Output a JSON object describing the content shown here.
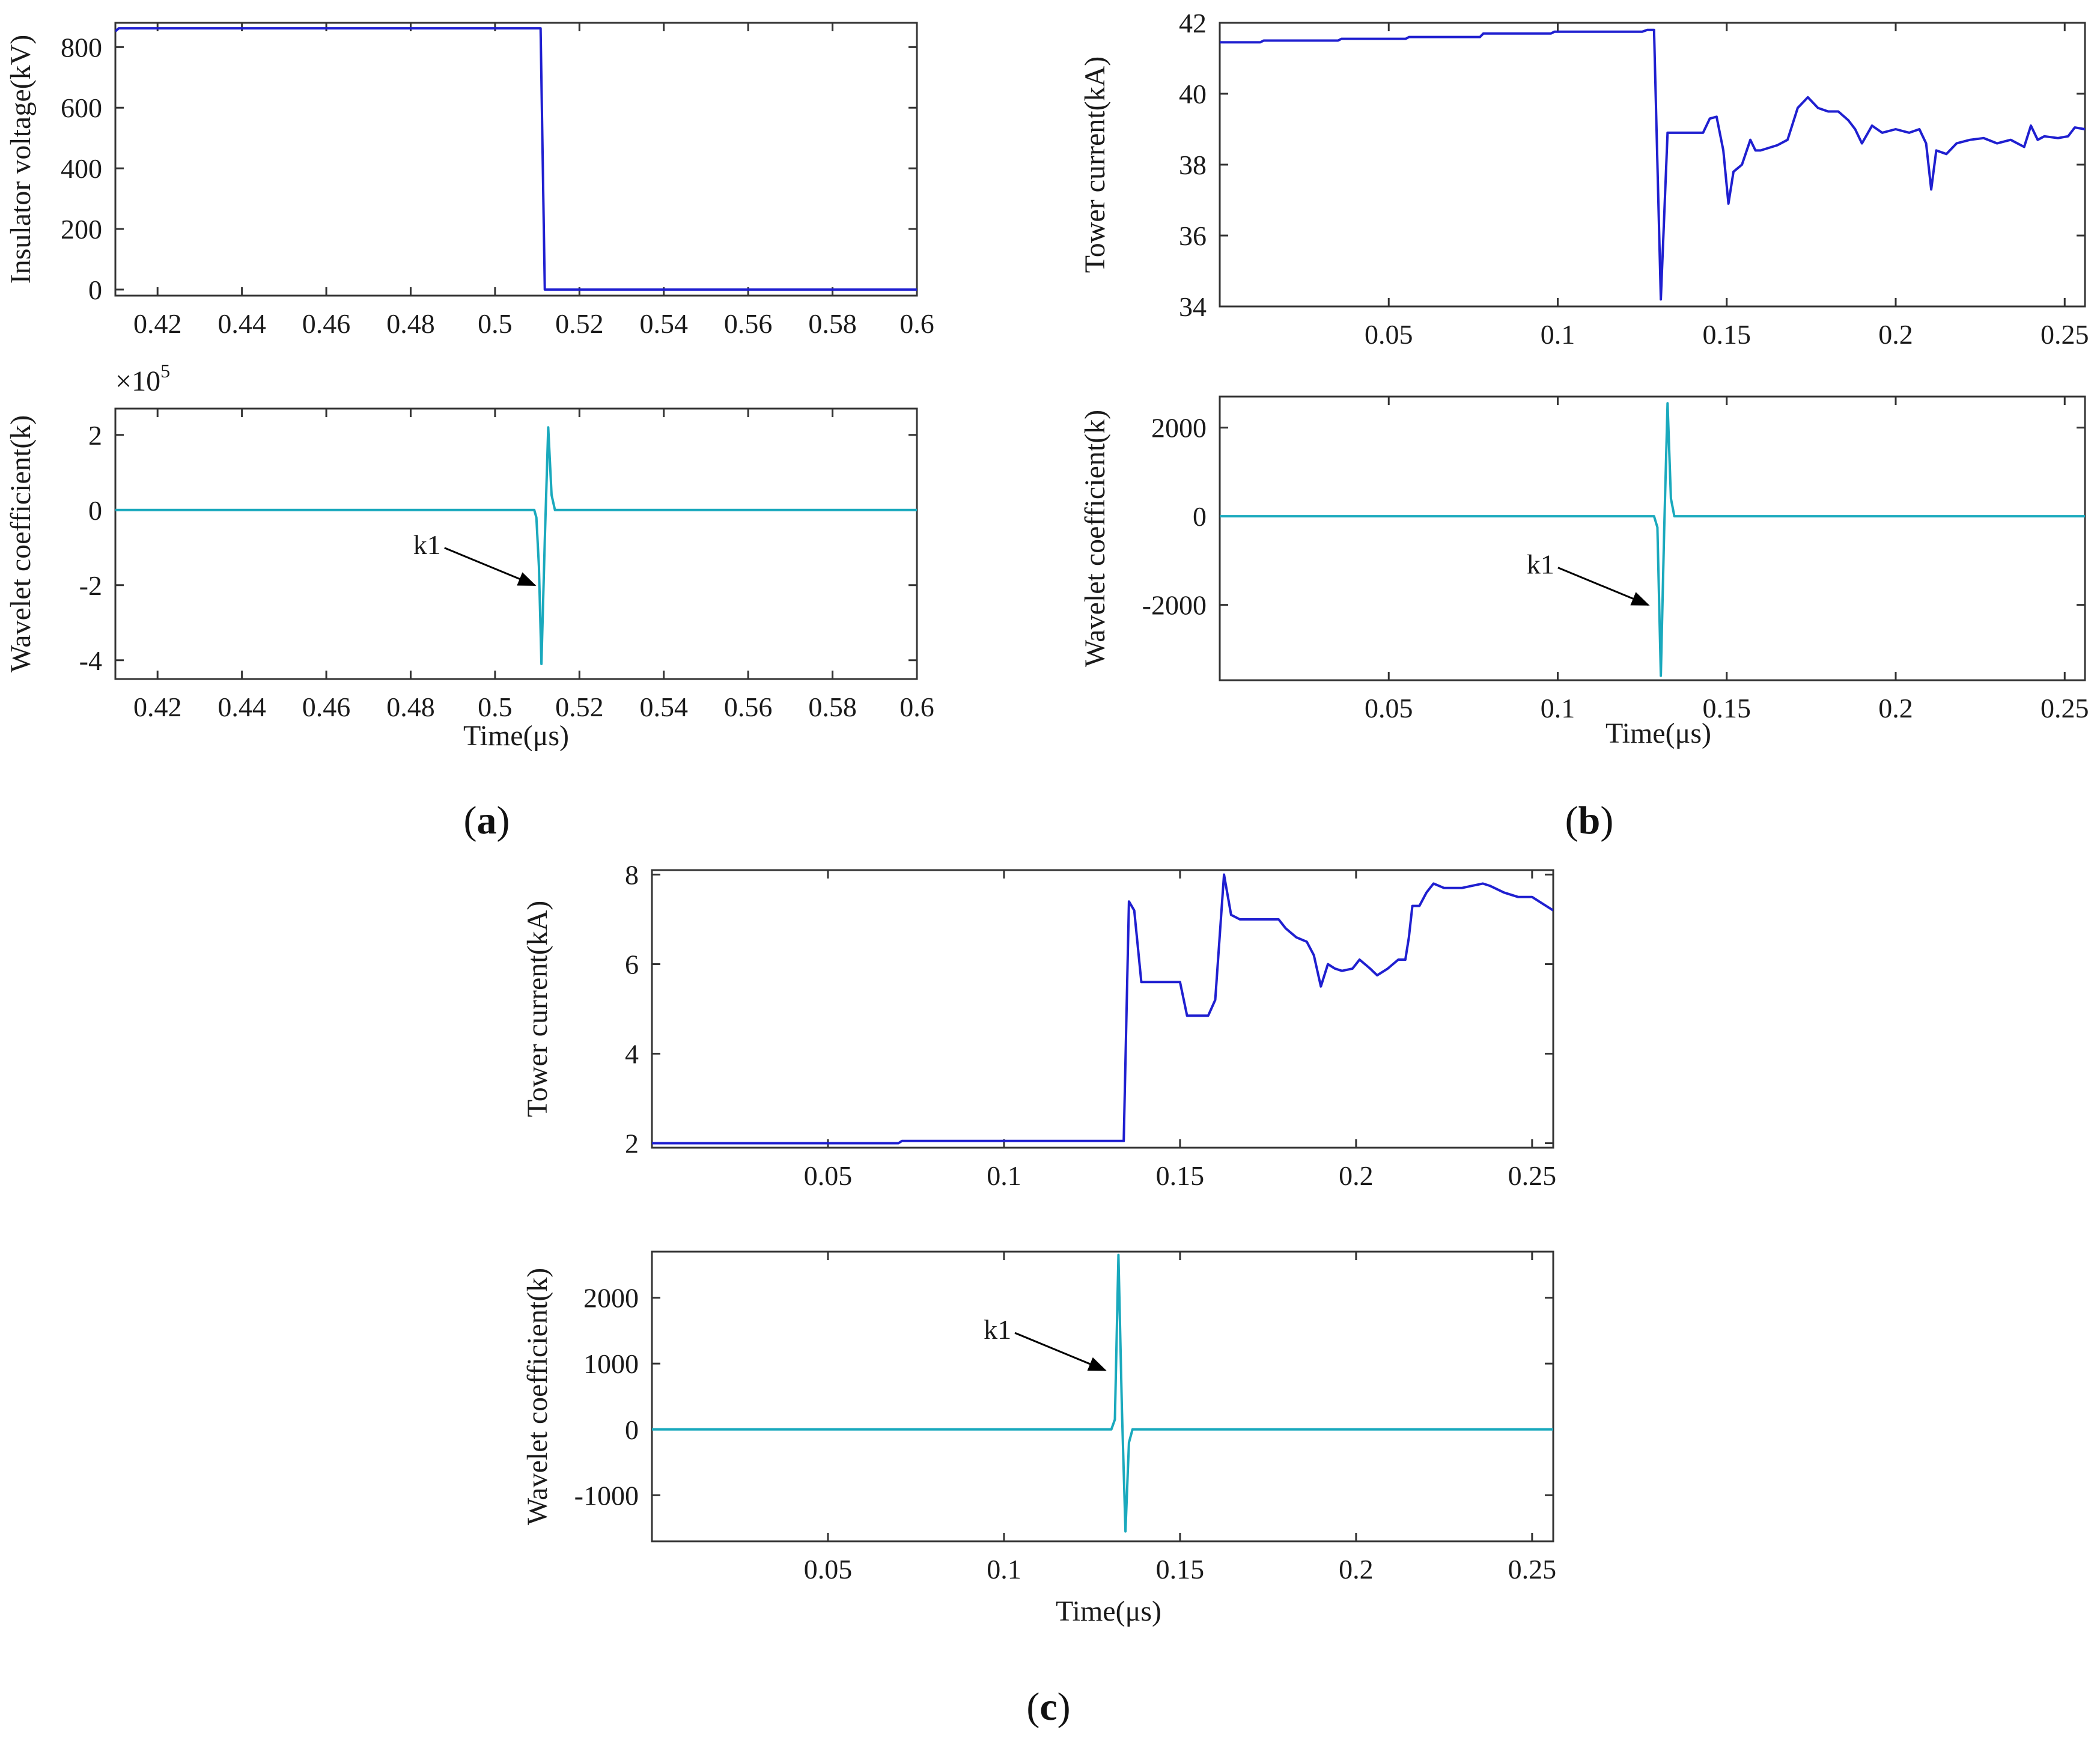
{
  "figure": {
    "colors": {
      "voltage_line": "#1f1fd0",
      "current_line": "#1f1fd0",
      "wavelet_line": "#1aa9bd",
      "axis": "#333333"
    },
    "panel_labels": [
      {
        "id": "a",
        "open": "(",
        "letter": "a",
        "close": ")"
      },
      {
        "id": "b",
        "open": "(",
        "letter": "b",
        "close": ")"
      },
      {
        "id": "c",
        "open": "(",
        "letter": "c",
        "close": ")"
      }
    ]
  },
  "chart_data": [
    {
      "id": "a_top",
      "type": "line",
      "panel": "a",
      "ylabel": "Insulator voltage(kV)",
      "xlabel": "",
      "xlim": [
        0.41,
        0.6
      ],
      "ylim": [
        -20,
        880
      ],
      "xticks": [
        0.42,
        0.44,
        0.46,
        0.48,
        0.5,
        0.52,
        0.54,
        0.56,
        0.58,
        0.6
      ],
      "xtick_labels": [
        "0.42",
        "0.44",
        "0.46",
        "0.48",
        "0.5",
        "0.52",
        "0.54",
        "0.56",
        "0.58",
        "0.6"
      ],
      "yticks": [
        0,
        200,
        400,
        600,
        800
      ],
      "ytick_labels": [
        "0",
        "200",
        "400",
        "600",
        "800"
      ],
      "series": [
        {
          "name": "Insulator voltage",
          "color": "#1f1fd0",
          "x": [
            0.41,
            0.4108,
            0.5108,
            0.5118,
            0.6
          ],
          "y": [
            852,
            862,
            862,
            0,
            0
          ]
        }
      ]
    },
    {
      "id": "a_bottom",
      "type": "line",
      "panel": "a",
      "ylabel": "Wavelet coefficient(k)",
      "xlabel": "Time(μs)",
      "scale_prefix": "×10",
      "scale_exponent": "5",
      "xlim": [
        0.41,
        0.6
      ],
      "ylim": [
        -4.5,
        2.7
      ],
      "xticks": [
        0.42,
        0.44,
        0.46,
        0.48,
        0.5,
        0.52,
        0.54,
        0.56,
        0.58,
        0.6
      ],
      "xtick_labels": [
        "0.42",
        "0.44",
        "0.46",
        "0.48",
        "0.5",
        "0.52",
        "0.54",
        "0.56",
        "0.58",
        "0.6"
      ],
      "yticks": [
        -4,
        -2,
        0,
        2
      ],
      "ytick_labels": [
        "-4",
        "-2",
        "0",
        "2"
      ],
      "series": [
        {
          "name": "Wavelet coefficient",
          "color": "#1aa9bd",
          "x": [
            0.41,
            0.5093,
            0.5098,
            0.5104,
            0.511,
            0.5118,
            0.5126,
            0.5134,
            0.5142,
            0.6
          ],
          "y": [
            0,
            0,
            -0.2,
            -1.5,
            -4.1,
            -0.8,
            2.2,
            0.4,
            0,
            0
          ]
        }
      ],
      "annotations": [
        {
          "text": "k1",
          "target_x": 0.5108,
          "target_y": -2.0
        }
      ]
    },
    {
      "id": "b_top",
      "type": "line",
      "panel": "b",
      "ylabel": "Tower current(kA)",
      "xlabel": "",
      "xlim": [
        0,
        0.256
      ],
      "ylim": [
        34,
        42
      ],
      "xticks": [
        0.05,
        0.1,
        0.15,
        0.2,
        0.25
      ],
      "xtick_labels": [
        "0.05",
        "0.1",
        "0.15",
        "0.2",
        "0.25"
      ],
      "yticks": [
        34,
        36,
        38,
        40,
        42
      ],
      "ytick_labels": [
        "34",
        "36",
        "38",
        "40",
        "42"
      ],
      "series": [
        {
          "name": "Tower current",
          "color": "#1f1fd0",
          "x": [
            0,
            0.012,
            0.013,
            0.035,
            0.036,
            0.055,
            0.056,
            0.077,
            0.078,
            0.098,
            0.099,
            0.125,
            0.1265,
            0.1285,
            0.1305,
            0.1325,
            0.134,
            0.143,
            0.145,
            0.147,
            0.149,
            0.1505,
            0.152,
            0.1545,
            0.157,
            0.1585,
            0.16,
            0.165,
            0.168,
            0.171,
            0.174,
            0.177,
            0.18,
            0.183,
            0.186,
            0.188,
            0.19,
            0.193,
            0.196,
            0.2,
            0.204,
            0.207,
            0.209,
            0.2105,
            0.212,
            0.215,
            0.218,
            0.222,
            0.226,
            0.23,
            0.234,
            0.238,
            0.24,
            0.242,
            0.244,
            0.248,
            0.251,
            0.253,
            0.256
          ],
          "y": [
            41.45,
            41.45,
            41.5,
            41.5,
            41.55,
            41.55,
            41.6,
            41.6,
            41.7,
            41.7,
            41.75,
            41.75,
            41.8,
            41.8,
            34.2,
            38.9,
            38.9,
            38.9,
            39.3,
            39.35,
            38.4,
            36.9,
            37.8,
            38.0,
            38.7,
            38.4,
            38.4,
            38.55,
            38.7,
            39.6,
            39.9,
            39.6,
            39.5,
            39.5,
            39.25,
            39.0,
            38.6,
            39.1,
            38.9,
            39.0,
            38.9,
            39.0,
            38.6,
            37.3,
            38.4,
            38.3,
            38.6,
            38.7,
            38.75,
            38.6,
            38.7,
            38.5,
            39.1,
            38.7,
            38.8,
            38.75,
            38.8,
            39.05,
            39.0
          ]
        }
      ]
    },
    {
      "id": "b_bottom",
      "type": "line",
      "panel": "b",
      "ylabel": "Wavelet coefficient(k)",
      "xlabel": "Time(μs)",
      "xlim": [
        0,
        0.256
      ],
      "ylim": [
        -3700,
        2700
      ],
      "xticks": [
        0.05,
        0.1,
        0.15,
        0.2,
        0.25
      ],
      "xtick_labels": [
        "0.05",
        "0.1",
        "0.15",
        "0.2",
        "0.25"
      ],
      "yticks": [
        -2000,
        0,
        2000
      ],
      "ytick_labels": [
        "-2000",
        "0",
        "2000"
      ],
      "series": [
        {
          "name": "Wavelet coefficient",
          "color": "#1aa9bd",
          "x": [
            0,
            0.1285,
            0.1295,
            0.1305,
            0.1315,
            0.1325,
            0.1335,
            0.1345,
            0.256
          ],
          "y": [
            0,
            0,
            -250,
            -3600,
            -300,
            2550,
            400,
            0,
            0
          ]
        }
      ],
      "annotations": [
        {
          "text": "k1",
          "target_x": 0.1285,
          "target_y": -2000
        }
      ]
    },
    {
      "id": "c_top",
      "type": "line",
      "panel": "c",
      "ylabel": "Tower current(kA)",
      "xlabel": "",
      "xlim": [
        0,
        0.256
      ],
      "ylim": [
        1.9,
        8.1
      ],
      "xticks": [
        0.05,
        0.1,
        0.15,
        0.2,
        0.25
      ],
      "xtick_labels": [
        "0.05",
        "0.1",
        "0.15",
        "0.2",
        "0.25"
      ],
      "yticks": [
        2,
        4,
        6,
        8
      ],
      "ytick_labels": [
        "2",
        "4",
        "6",
        "8"
      ],
      "series": [
        {
          "name": "Tower current",
          "color": "#1f1fd0",
          "x": [
            0,
            0.07,
            0.071,
            0.134,
            0.1355,
            0.137,
            0.139,
            0.15,
            0.152,
            0.158,
            0.16,
            0.1625,
            0.1645,
            0.167,
            0.17,
            0.178,
            0.18,
            0.183,
            0.186,
            0.188,
            0.19,
            0.192,
            0.194,
            0.196,
            0.199,
            0.201,
            0.204,
            0.206,
            0.209,
            0.212,
            0.214,
            0.215,
            0.216,
            0.218,
            0.22,
            0.222,
            0.225,
            0.23,
            0.233,
            0.236,
            0.238,
            0.242,
            0.246,
            0.25,
            0.253,
            0.256
          ],
          "y": [
            2.0,
            2.0,
            2.05,
            2.05,
            7.4,
            7.2,
            5.6,
            5.6,
            4.85,
            4.85,
            5.2,
            8.0,
            7.1,
            7.0,
            7.0,
            7.0,
            6.8,
            6.6,
            6.5,
            6.2,
            5.5,
            6.0,
            5.9,
            5.85,
            5.9,
            6.1,
            5.9,
            5.75,
            5.9,
            6.1,
            6.1,
            6.6,
            7.3,
            7.3,
            7.6,
            7.8,
            7.7,
            7.7,
            7.75,
            7.8,
            7.75,
            7.6,
            7.5,
            7.5,
            7.35,
            7.2
          ]
        }
      ]
    },
    {
      "id": "c_bottom",
      "type": "line",
      "panel": "c",
      "ylabel": "Wavelet coefficient(k)",
      "xlabel": "Time(μs)",
      "xlim": [
        0,
        0.256
      ],
      "ylim": [
        -1700,
        2700
      ],
      "xticks": [
        0.05,
        0.1,
        0.15,
        0.2,
        0.25
      ],
      "xtick_labels": [
        "0.05",
        "0.1",
        "0.15",
        "0.2",
        "0.25"
      ],
      "yticks": [
        -1000,
        0,
        1000,
        2000
      ],
      "ytick_labels": [
        "-1000",
        "0",
        "1000",
        "2000"
      ],
      "series": [
        {
          "name": "Wavelet coefficient",
          "color": "#1aa9bd",
          "x": [
            0,
            0.1305,
            0.1315,
            0.1325,
            0.1335,
            0.1345,
            0.1355,
            0.1365,
            0.256
          ],
          "y": [
            0,
            0,
            150,
            2650,
            300,
            -1550,
            -200,
            0,
            0
          ]
        }
      ],
      "annotations": [
        {
          "text": "k1",
          "target_x": 0.1304,
          "target_y": 900
        }
      ]
    }
  ]
}
